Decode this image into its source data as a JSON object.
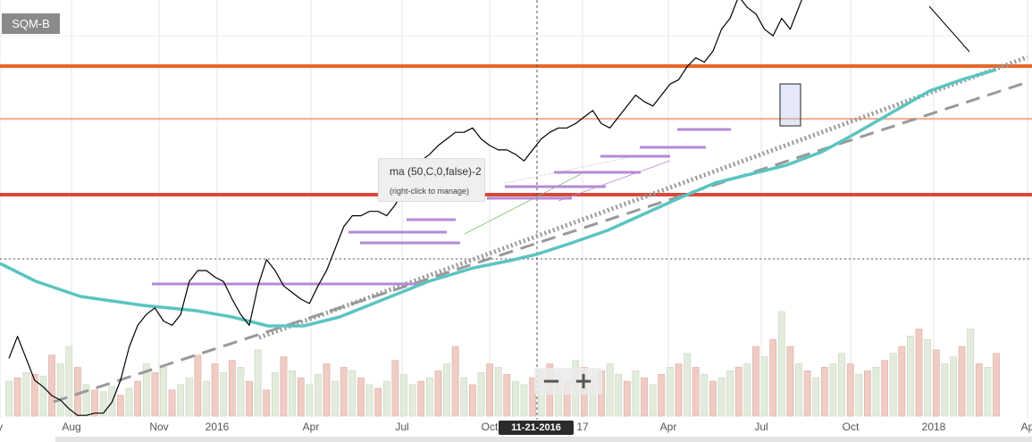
{
  "ticker": "SQM-B",
  "tooltip": {
    "title": "ma (50,C,0,false)-2",
    "hint": "(right-click to manage)"
  },
  "crosshair_date": "11-21-2016",
  "zoom": {
    "minus": "−",
    "plus": "+"
  },
  "x_labels": [
    "y",
    "Aug",
    "Nov",
    "2016",
    "Apr",
    "Jul",
    "Oct",
    "17",
    "Apr",
    "Jul",
    "Oct",
    "2018",
    "Ap"
  ],
  "colors": {
    "price": "#000000",
    "ma": "#5bc4c0",
    "resistance_thick": "#e8672a",
    "resistance_thin": "#f08050",
    "support_red": "#d9473b",
    "trend": "#999999",
    "purple": "#b58ad6",
    "vol_up": "#e3ecdc",
    "vol_down": "#efccc4"
  },
  "chart_data": {
    "type": "line",
    "title": "",
    "xlabel": "",
    "ylabel": "",
    "grid": true,
    "series": [
      {
        "values": [
          35,
          45,
          35,
          25,
          22,
          18,
          16,
          12,
          9,
          9,
          10,
          10,
          15,
          25,
          40,
          50,
          55,
          58,
          52,
          50,
          55,
          70,
          75,
          75,
          72,
          70,
          62,
          55,
          50,
          68,
          80,
          75,
          68,
          65,
          62,
          60,
          68,
          75,
          85,
          95,
          100,
          100,
          102,
          102,
          100,
          105,
          112,
          120,
          125,
          128,
          132,
          135,
          138,
          138,
          140,
          135,
          132,
          130,
          130,
          128,
          125,
          130,
          135,
          138,
          140,
          140,
          142,
          145,
          148,
          142,
          140,
          145,
          150,
          155,
          152,
          150,
          155,
          160,
          162,
          168,
          172,
          170,
          175,
          185,
          190,
          200,
          195,
          192,
          185,
          182,
          190,
          185,
          195,
          205,
          210,
          218,
          228,
          232,
          240,
          250,
          268,
          272,
          265,
          265,
          268,
          262,
          260,
          255,
          250,
          245,
          252,
          255,
          248,
          240,
          245,
          250
        ]
      },
      {
        "values": [
          60,
          62,
          64,
          66,
          68,
          70,
          72,
          74,
          76,
          78,
          80,
          82,
          84,
          86,
          88,
          90,
          92,
          94,
          96,
          98,
          100,
          102,
          104,
          106,
          108,
          110,
          112,
          114,
          116,
          118,
          120,
          122,
          124,
          126,
          128,
          130,
          132,
          134,
          136,
          138,
          140,
          142,
          144,
          146,
          148,
          150,
          152,
          154,
          156,
          158,
          160,
          162,
          164,
          166,
          168,
          170,
          172,
          174,
          176,
          178,
          180,
          182,
          184,
          186,
          188,
          190,
          192,
          194,
          196,
          198,
          200,
          202,
          204,
          206,
          208,
          210,
          212,
          214,
          216,
          218,
          220,
          222,
          224,
          226,
          228,
          230,
          232,
          234,
          236,
          238,
          240,
          242,
          244,
          246,
          248,
          250,
          252,
          254,
          256,
          258,
          260,
          262,
          264,
          266,
          268,
          270,
          272,
          274,
          276,
          278,
          280,
          282,
          284,
          286,
          288,
          290
        ]
      }
    ],
    "volume": [
      20,
      22,
      25,
      24,
      23,
      35,
      30,
      40,
      28,
      18,
      15,
      14,
      17,
      12,
      16,
      20,
      30,
      25,
      28,
      15,
      18,
      22,
      35,
      20,
      30,
      25,
      32,
      28,
      20,
      38,
      15,
      25,
      34,
      26,
      22,
      18,
      24,
      30,
      20,
      28,
      26,
      22,
      18,
      16,
      20,
      32,
      24,
      18,
      20,
      22,
      26,
      30,
      40,
      22,
      18,
      25,
      30,
      28,
      24,
      20,
      18,
      22,
      26,
      30,
      24,
      20,
      32,
      28,
      22,
      26,
      30,
      24,
      20,
      26,
      22,
      18,
      24,
      28,
      30,
      36,
      28,
      24,
      20,
      22,
      26,
      28,
      30,
      40,
      34,
      44,
      60,
      40,
      30,
      26,
      22,
      28,
      30,
      36,
      30,
      24,
      26,
      28,
      32,
      36,
      40,
      46,
      50,
      44,
      38,
      30,
      34,
      40,
      50,
      30,
      28,
      36
    ],
    "volume_direction": [
      "u",
      "d",
      "u",
      "d",
      "u",
      "d",
      "u",
      "u",
      "d",
      "u",
      "d",
      "u",
      "u",
      "d",
      "u",
      "d",
      "u",
      "d",
      "u",
      "d",
      "u",
      "u",
      "d",
      "u",
      "d",
      "u",
      "d",
      "u",
      "d",
      "u",
      "d",
      "u",
      "d",
      "u",
      "d",
      "u",
      "u",
      "d",
      "u",
      "d",
      "u",
      "d",
      "u",
      "d",
      "u",
      "d",
      "u",
      "u",
      "d",
      "u",
      "d",
      "u",
      "d",
      "u",
      "d",
      "u",
      "d",
      "u",
      "d",
      "u",
      "u",
      "d",
      "u",
      "d",
      "u",
      "d",
      "u",
      "d",
      "u",
      "d",
      "u",
      "u",
      "d",
      "u",
      "d",
      "u",
      "d",
      "u",
      "d",
      "u",
      "d",
      "u",
      "d",
      "u",
      "u",
      "d",
      "u",
      "d",
      "u",
      "d",
      "u",
      "d",
      "u",
      "d",
      "u",
      "d",
      "u",
      "u",
      "d",
      "u",
      "d",
      "u",
      "d",
      "u",
      "d",
      "u",
      "d",
      "u",
      "d",
      "u",
      "u",
      "d",
      "u",
      "d",
      "u",
      "d"
    ]
  }
}
